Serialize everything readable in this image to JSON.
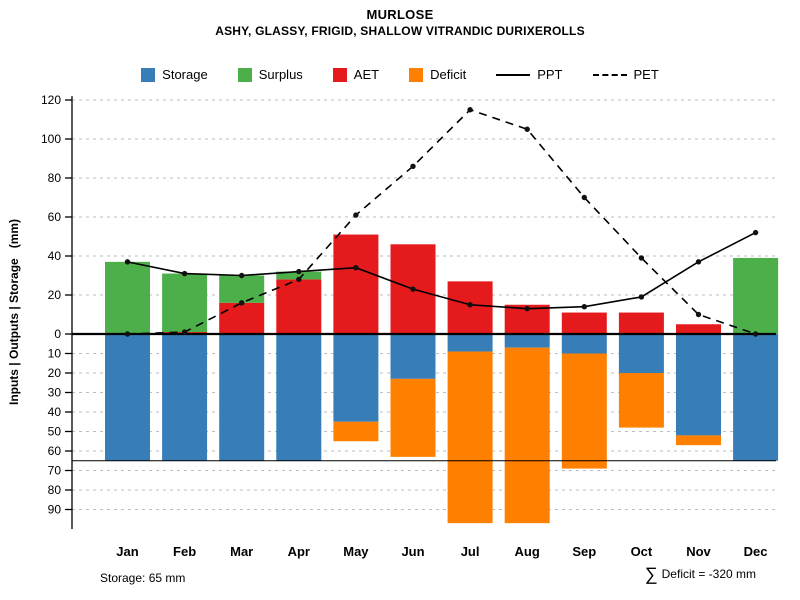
{
  "title": "MURLOSE",
  "subtitle": "ASHY, GLASSY, FRIGID, SHALLOW VITRANDIC DURIXEROLLS",
  "colors": {
    "storage": "#377EB8",
    "surplus": "#4DAF4A",
    "aet": "#E41A1C",
    "deficit": "#FF7F00",
    "grid": "#bdbdbd",
    "line": "#000000"
  },
  "legend": [
    {
      "label": "Storage",
      "marker": "swatch",
      "color_key": "storage"
    },
    {
      "label": "Surplus",
      "marker": "swatch",
      "color_key": "surplus"
    },
    {
      "label": "AET",
      "marker": "swatch",
      "color_key": "aet"
    },
    {
      "label": "Deficit",
      "marker": "swatch",
      "color_key": "deficit"
    },
    {
      "label": "PPT",
      "marker": "line_solid"
    },
    {
      "label": "PET",
      "marker": "line_dashed"
    }
  ],
  "footer": {
    "storage_note": "Storage: 65 mm",
    "deficit_sigma": "∑",
    "deficit_text": "Deficit = -320 mm"
  },
  "chart_data": {
    "type": "bar",
    "title": "MURLOSE",
    "subtitle": "ASHY, GLASSY, FRIGID, SHALLOW VITRANDIC DURIXEROLLS",
    "ylabel": "Inputs | Outputs | Storage   (mm)",
    "xlabel": "",
    "categories": [
      "Jan",
      "Feb",
      "Mar",
      "Apr",
      "May",
      "Jun",
      "Jul",
      "Aug",
      "Sep",
      "Oct",
      "Nov",
      "Dec"
    ],
    "series": [
      {
        "name": "AET",
        "render": "bar_above",
        "color_key": "aet",
        "values": [
          0,
          1,
          16,
          28,
          51,
          46,
          27,
          15,
          11,
          11,
          5,
          0
        ]
      },
      {
        "name": "Surplus",
        "render": "bar_above",
        "color_key": "surplus",
        "values": [
          37,
          30,
          14,
          4,
          0,
          0,
          0,
          0,
          0,
          0,
          0,
          39
        ]
      },
      {
        "name": "Storage",
        "render": "bar_below",
        "color_key": "storage",
        "values": [
          65,
          65,
          65,
          65,
          45,
          23,
          9,
          7,
          10,
          20,
          52,
          65
        ]
      },
      {
        "name": "Deficit",
        "render": "bar_below",
        "color_key": "deficit",
        "values": [
          0,
          0,
          0,
          0,
          10,
          40,
          88,
          90,
          59,
          28,
          5,
          0
        ]
      },
      {
        "name": "PPT",
        "render": "line_solid",
        "color_key": "line",
        "values": [
          37,
          31,
          30,
          32,
          34,
          23,
          15,
          13,
          14,
          19,
          37,
          52
        ]
      },
      {
        "name": "PET",
        "render": "line_dashed",
        "color_key": "line",
        "values": [
          0,
          1,
          16,
          28,
          61,
          86,
          115,
          105,
          70,
          39,
          10,
          0
        ]
      }
    ],
    "yticks_above": [
      0,
      20,
      40,
      60,
      80,
      100,
      120
    ],
    "yticks_below": [
      10,
      20,
      30,
      40,
      50,
      60,
      70,
      80,
      90
    ],
    "ylim": [
      -100,
      122
    ],
    "grid": true,
    "legend_position": "top",
    "storage_max_mm": 65,
    "deficit_total_mm": -320
  }
}
